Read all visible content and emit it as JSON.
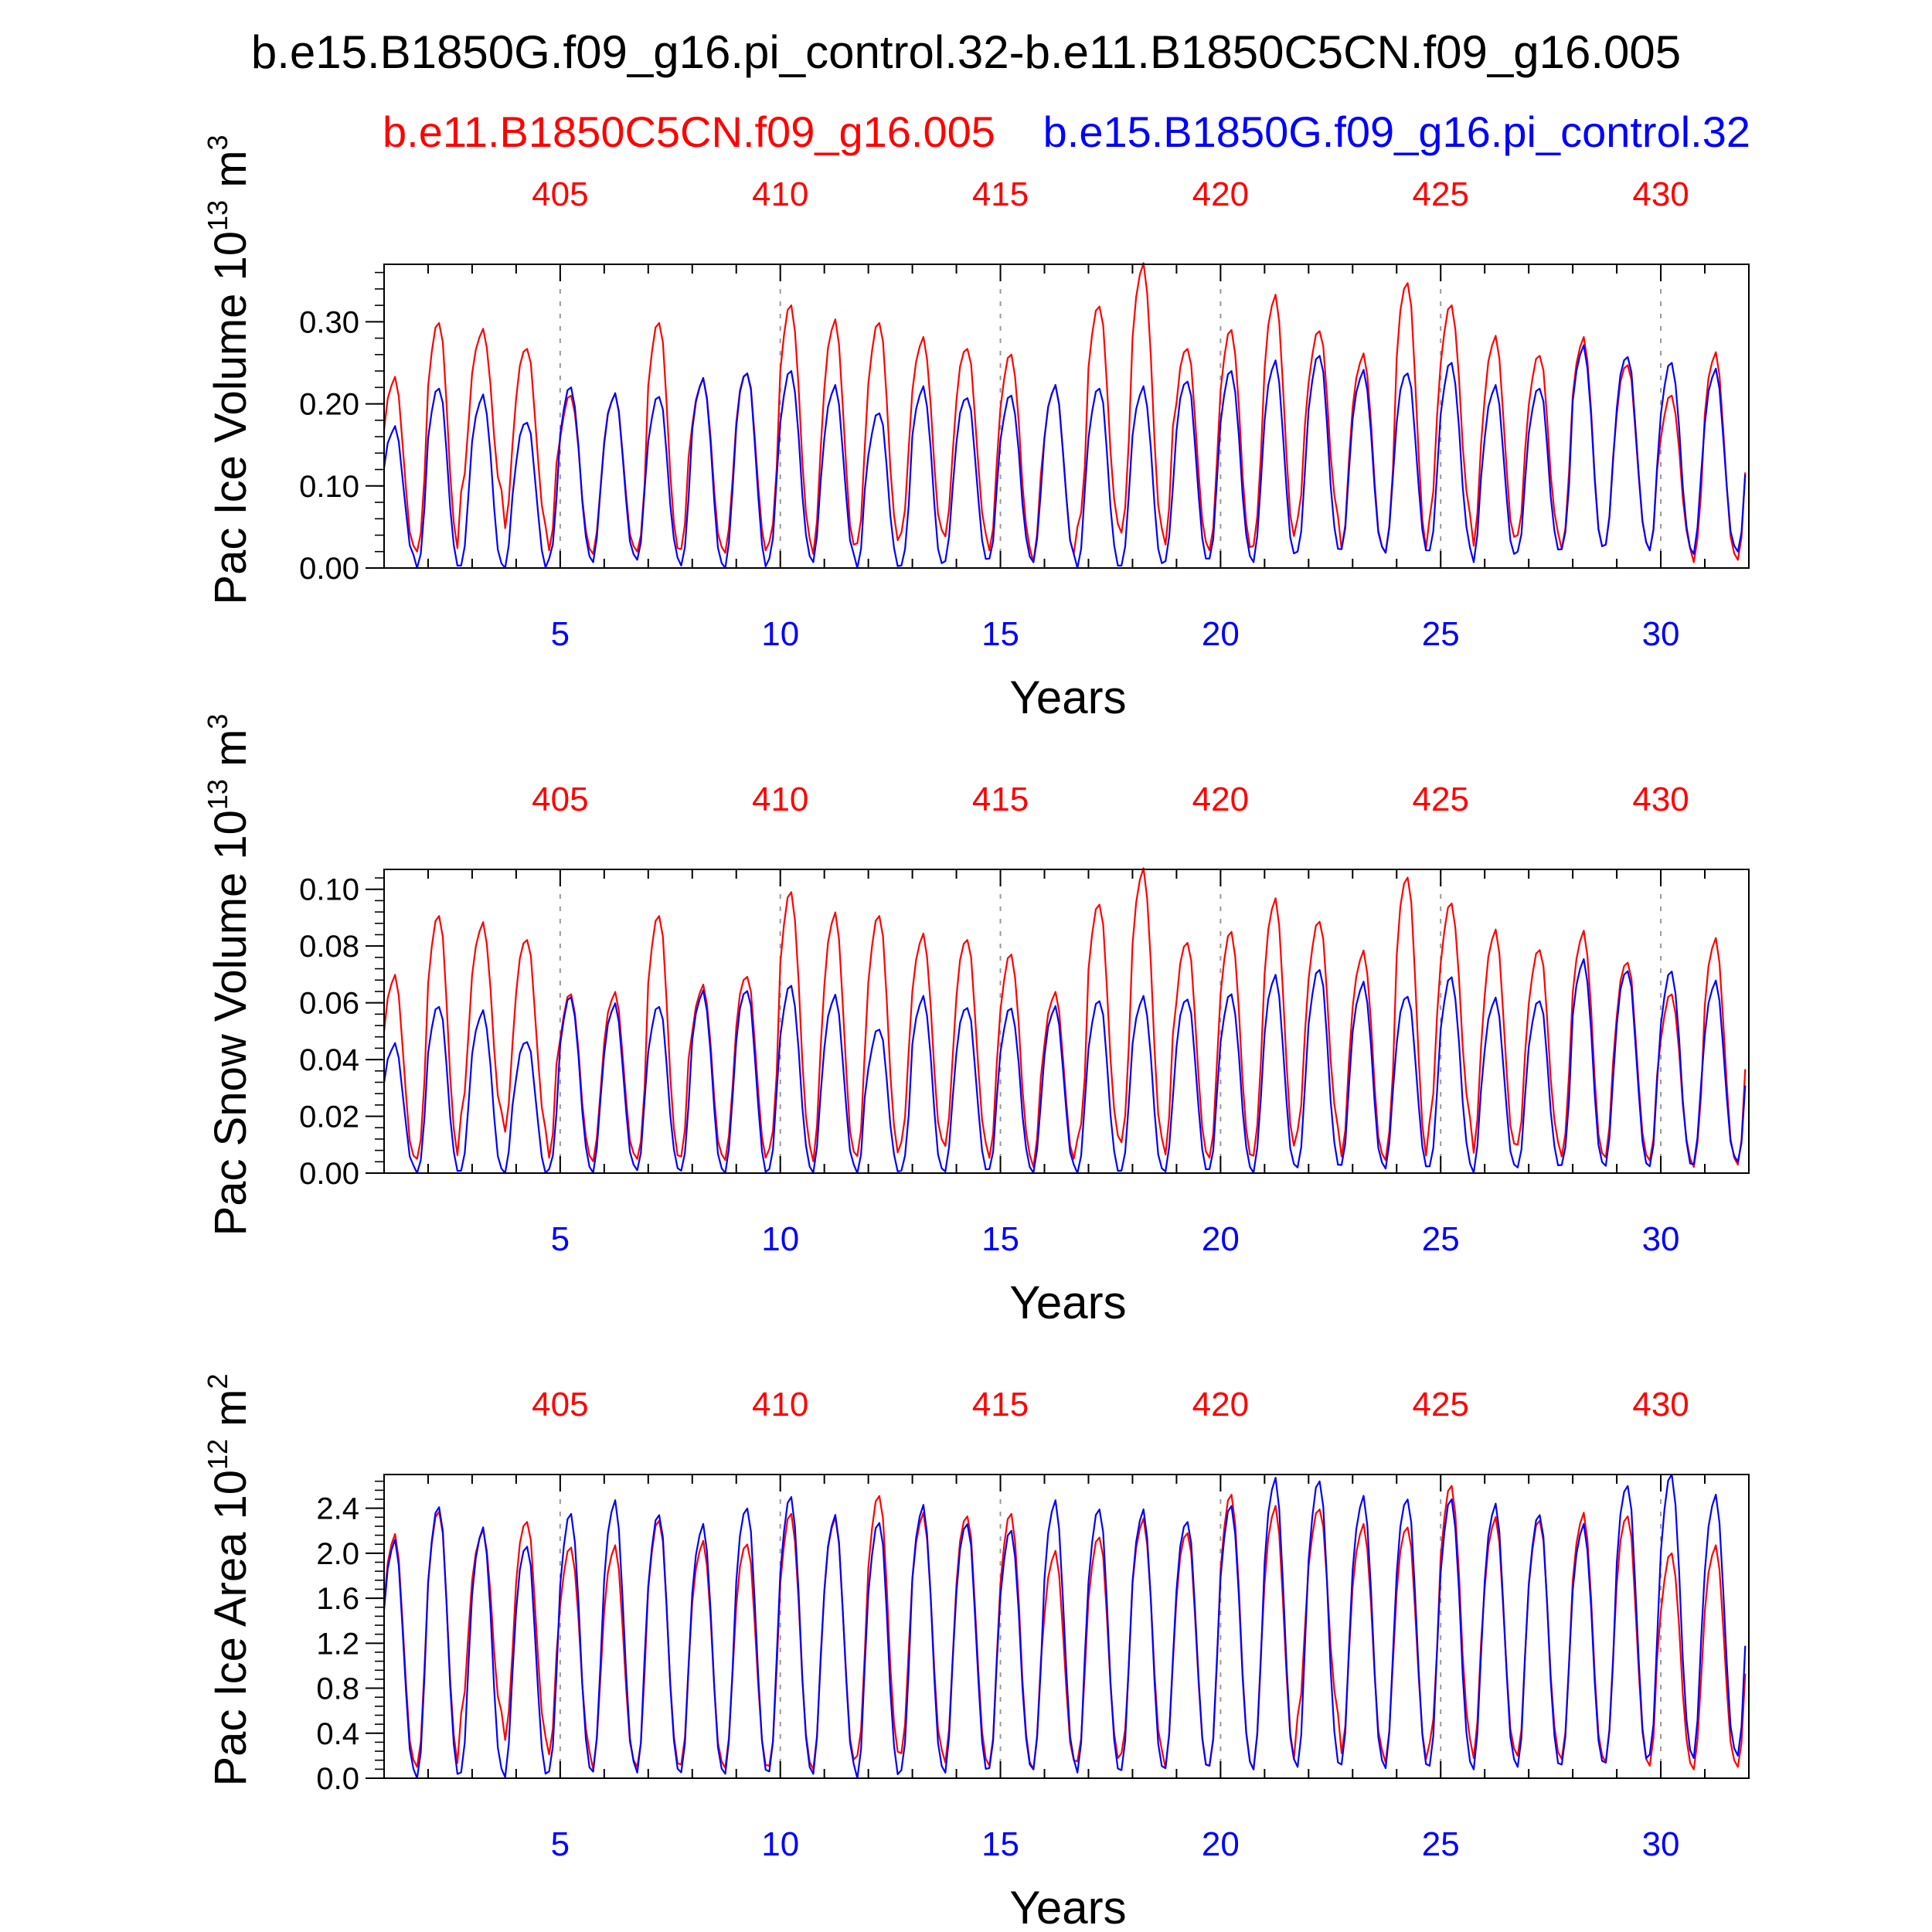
{
  "figure": {
    "title": "b.e15.B1850G.f09_g16.pi_control.32-b.e11.B1850C5CN.f09_g16.005",
    "legend_left": "b.e11.B1850C5CN.f09_g16.005",
    "legend_right": "b.e15.B1850G.f09_g16.pi_control.32",
    "colors": {
      "case_red": "#ff0000",
      "case_blue": "#0000ff",
      "frame": "#000000",
      "grid": "#999999"
    }
  },
  "chart_data": [
    {
      "type": "line",
      "ylabel": "Pac Ice Volume 10",
      "ylabel_exp": "13",
      "ylabel_unit": " m",
      "ylabel_unit_exp": "3",
      "xlabel": "Years",
      "xlim": [
        1,
        32
      ],
      "ylim": [
        0,
        0.37
      ],
      "yticks": [
        0,
        0.1,
        0.2,
        0.3
      ],
      "ytick_labels": [
        "0.00",
        "0.10",
        "0.20",
        "0.30"
      ],
      "xticks_bottom": [
        5,
        10,
        15,
        20,
        25,
        30
      ],
      "xticks_top": [
        "405",
        "410",
        "415",
        "420",
        "425",
        "430"
      ],
      "grid_x": "dashed at 5, 10, 15, 20, 25, 30",
      "series": [
        {
          "name": "b.e11.B1850C5CN.f09_g16.005",
          "color": "#ff0000",
          "annual_max": [
            0.23,
            0.3,
            0.29,
            0.27,
            0.21,
            0.21,
            0.3,
            0.23,
            0.24,
            0.32,
            0.3,
            0.3,
            0.28,
            0.27,
            0.26,
            0.22,
            0.32,
            0.37,
            0.27,
            0.29,
            0.33,
            0.29,
            0.26,
            0.35,
            0.32,
            0.28,
            0.26,
            0.28,
            0.25,
            0.21,
            0.26
          ],
          "annual_min": [
            0.02,
            0.02,
            0.09,
            0.05,
            0.02,
            0.02,
            0.02,
            0.02,
            0.02,
            0.03,
            0.02,
            0.03,
            0.04,
            0.04,
            0.02,
            0.01,
            0.05,
            0.04,
            0.03,
            0.02,
            0.03,
            0.06,
            0.02,
            0.02,
            0.06,
            0.03,
            0.04,
            0.02,
            0.03,
            0.02,
            0.01
          ]
        },
        {
          "name": "b.e15.B1850G.f09_g16.pi_control.32",
          "color": "#0000ff",
          "annual_max": [
            0.17,
            0.22,
            0.21,
            0.18,
            0.22,
            0.21,
            0.21,
            0.23,
            0.24,
            0.24,
            0.22,
            0.19,
            0.22,
            0.21,
            0.21,
            0.22,
            0.22,
            0.22,
            0.23,
            0.24,
            0.25,
            0.26,
            0.24,
            0.24,
            0.25,
            0.22,
            0.22,
            0.27,
            0.26,
            0.25,
            0.24
          ],
          "annual_min": [
            0.01,
            0.0,
            0.0,
            0.0,
            0.01,
            0.01,
            0.01,
            0.0,
            0.0,
            0.01,
            0.01,
            0.0,
            0.0,
            0.01,
            0.01,
            0.01,
            0.0,
            0.0,
            0.01,
            0.01,
            0.01,
            0.02,
            0.02,
            0.02,
            0.02,
            0.01,
            0.02,
            0.02,
            0.03,
            0.02,
            0.02
          ]
        }
      ]
    },
    {
      "type": "line",
      "ylabel": "Pac Snow Volume 10",
      "ylabel_exp": "13",
      "ylabel_unit": " m",
      "ylabel_unit_exp": "3",
      "xlabel": "Years",
      "xlim": [
        1,
        32
      ],
      "ylim": [
        0,
        0.107
      ],
      "yticks": [
        0,
        0.02,
        0.04,
        0.06,
        0.08,
        0.1
      ],
      "ytick_labels": [
        "0.00",
        "0.02",
        "0.04",
        "0.06",
        "0.08",
        "0.10"
      ],
      "xticks_bottom": [
        5,
        10,
        15,
        20,
        25,
        30
      ],
      "xticks_top": [
        "405",
        "410",
        "415",
        "420",
        "425",
        "430"
      ],
      "grid_x": "dashed at 5, 10, 15, 20, 25, 30",
      "series": [
        {
          "name": "b.e11.B1850C5CN.f09_g16.005",
          "color": "#ff0000",
          "annual_max": [
            0.069,
            0.091,
            0.088,
            0.083,
            0.063,
            0.063,
            0.091,
            0.066,
            0.07,
            0.099,
            0.091,
            0.091,
            0.084,
            0.083,
            0.077,
            0.063,
            0.095,
            0.107,
            0.082,
            0.085,
            0.096,
            0.089,
            0.078,
            0.105,
            0.095,
            0.085,
            0.079,
            0.085,
            0.075,
            0.063,
            0.082
          ],
          "annual_min": [
            0.004,
            0.005,
            0.02,
            0.015,
            0.005,
            0.005,
            0.005,
            0.005,
            0.005,
            0.008,
            0.005,
            0.006,
            0.01,
            0.01,
            0.005,
            0.003,
            0.012,
            0.01,
            0.007,
            0.005,
            0.007,
            0.015,
            0.005,
            0.005,
            0.018,
            0.008,
            0.01,
            0.005,
            0.006,
            0.004,
            0.003
          ]
        },
        {
          "name": "b.e15.B1850G.f09_g16.pi_control.32",
          "color": "#0000ff",
          "annual_max": [
            0.045,
            0.059,
            0.057,
            0.047,
            0.062,
            0.059,
            0.059,
            0.064,
            0.065,
            0.066,
            0.062,
            0.051,
            0.062,
            0.059,
            0.058,
            0.058,
            0.061,
            0.062,
            0.062,
            0.063,
            0.069,
            0.072,
            0.067,
            0.063,
            0.069,
            0.061,
            0.061,
            0.075,
            0.072,
            0.071,
            0.067
          ],
          "annual_min": [
            0.001,
            0.0,
            0.0,
            0.0,
            0.001,
            0.001,
            0.001,
            0.0,
            0.0,
            0.001,
            0.001,
            0.0,
            0.0,
            0.001,
            0.001,
            0.001,
            0.0,
            0.0,
            0.001,
            0.001,
            0.001,
            0.002,
            0.002,
            0.002,
            0.002,
            0.001,
            0.002,
            0.002,
            0.003,
            0.002,
            0.004
          ]
        }
      ]
    },
    {
      "type": "line",
      "ylabel": "Pac Ice Area 10",
      "ylabel_exp": "12",
      "ylabel_unit": " m",
      "ylabel_unit_exp": "2",
      "xlabel": "Years",
      "xlim": [
        1,
        32
      ],
      "ylim": [
        0,
        2.7
      ],
      "yticks": [
        0,
        0.4,
        0.8,
        1.2,
        1.6,
        2.0,
        2.4
      ],
      "ytick_labels": [
        "0.0",
        "0.4",
        "0.8",
        "1.2",
        "1.6",
        "2.0",
        "2.4"
      ],
      "xticks_bottom": [
        5,
        10,
        15,
        20,
        25,
        30
      ],
      "xticks_top": [
        "405",
        "410",
        "415",
        "420",
        "425",
        "430"
      ],
      "grid_x": "dashed at 5, 10, 15, 20, 25, 30",
      "series": [
        {
          "name": "b.e11.B1850C5CN.f09_g16.005",
          "color": "#ff0000",
          "annual_max": [
            2.15,
            2.38,
            2.2,
            2.3,
            2.05,
            2.05,
            2.3,
            2.1,
            2.1,
            2.35,
            2.3,
            2.52,
            2.35,
            2.35,
            2.35,
            2.0,
            2.15,
            2.3,
            2.2,
            2.52,
            2.4,
            2.4,
            2.25,
            2.25,
            2.6,
            2.3,
            2.3,
            2.35,
            2.35,
            2.0,
            2.05
          ],
          "annual_min": [
            0.1,
            0.1,
            0.55,
            0.35,
            0.2,
            0.1,
            0.1,
            0.1,
            0.1,
            0.1,
            0.1,
            0.2,
            0.2,
            0.15,
            0.1,
            0.1,
            0.15,
            0.2,
            0.1,
            0.1,
            0.1,
            0.55,
            0.2,
            0.15,
            0.3,
            0.2,
            0.2,
            0.15,
            0.15,
            0.1,
            0.1
          ]
        },
        {
          "name": "b.e15.B1850G.f09_g16.pi_control.32",
          "color": "#0000ff",
          "annual_max": [
            2.1,
            2.42,
            2.22,
            2.08,
            2.35,
            2.45,
            2.35,
            2.25,
            2.42,
            2.5,
            2.32,
            2.28,
            2.42,
            2.28,
            2.2,
            2.45,
            2.4,
            2.38,
            2.3,
            2.42,
            2.65,
            2.65,
            2.5,
            2.5,
            2.48,
            2.42,
            2.35,
            2.25,
            2.62,
            2.7,
            2.5
          ],
          "annual_min": [
            0.02,
            0.0,
            0.03,
            0.02,
            0.05,
            0.08,
            0.05,
            0.03,
            0.05,
            0.05,
            0.06,
            0.0,
            0.05,
            0.06,
            0.08,
            0.1,
            0.05,
            0.05,
            0.1,
            0.1,
            0.1,
            0.1,
            0.1,
            0.1,
            0.1,
            0.1,
            0.1,
            0.1,
            0.15,
            0.2,
            0.2
          ]
        }
      ]
    }
  ]
}
